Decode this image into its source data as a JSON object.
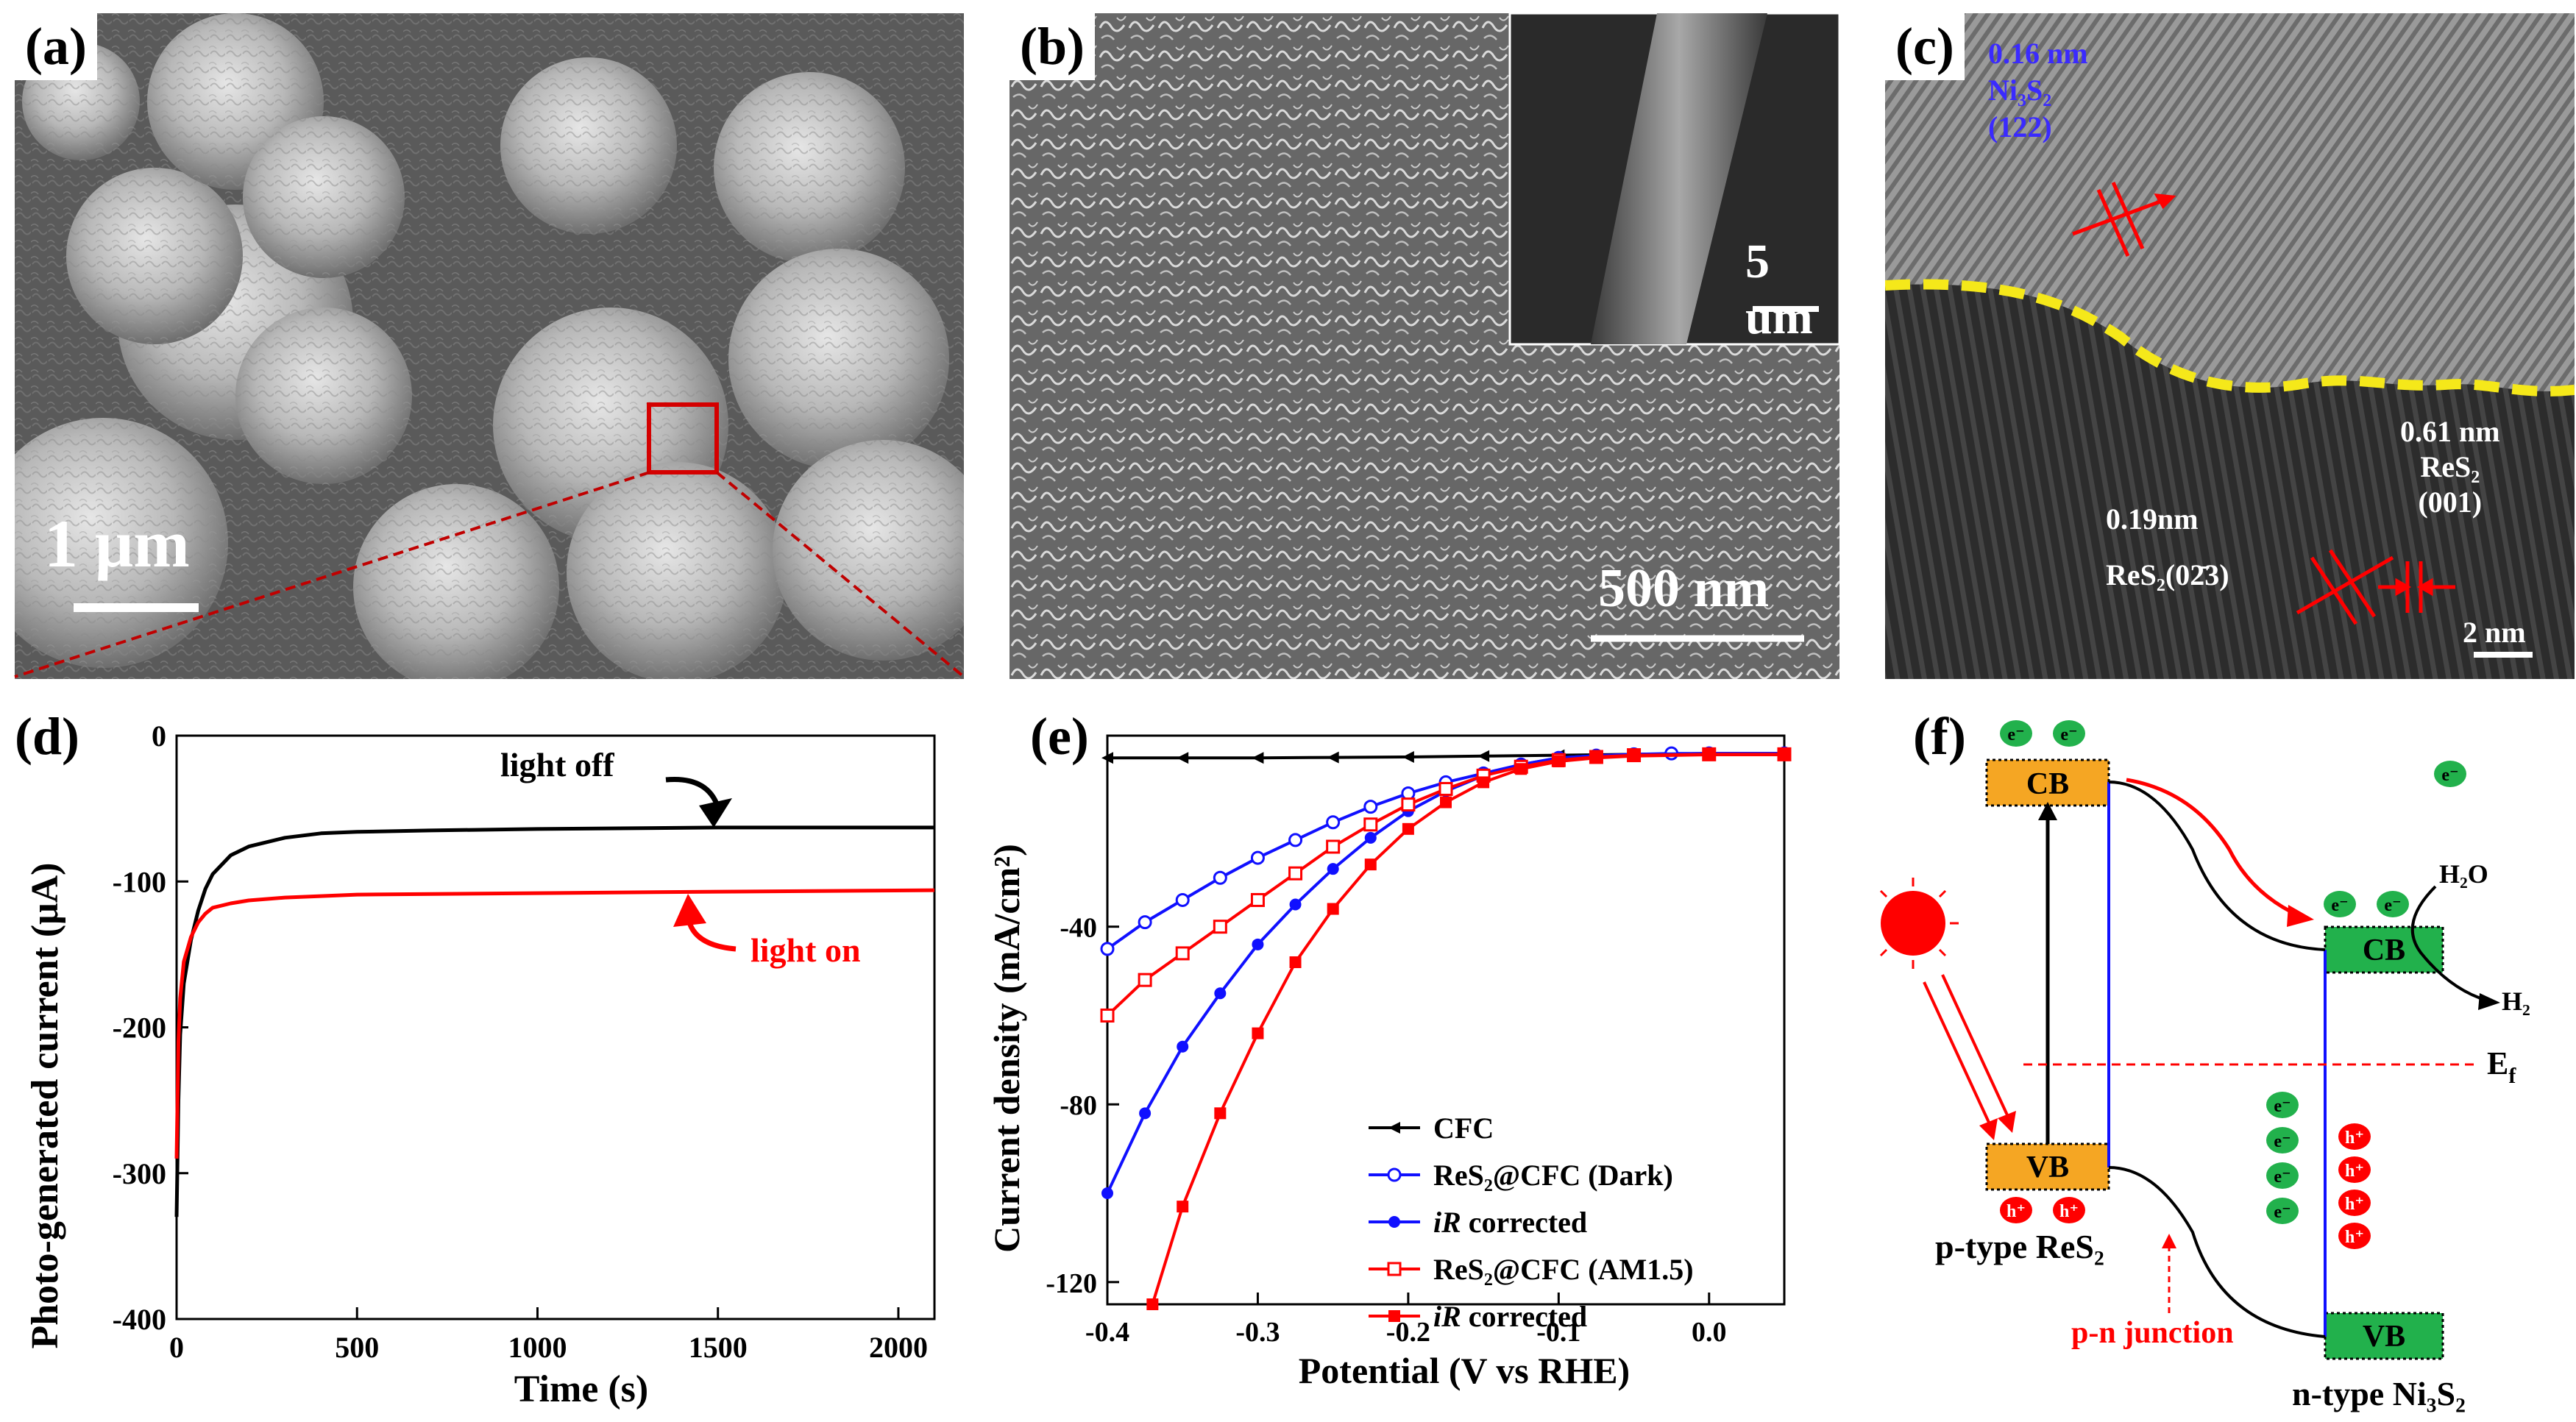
{
  "panels": {
    "a": {
      "label": "(a)",
      "scale": "1 μm"
    },
    "b": {
      "label": "(b)",
      "scale": "500 nm",
      "inset_scale": "5 um"
    },
    "c": {
      "label": "(c)",
      "ni3s2": {
        "d": "0.16 nm",
        "phase": "Ni₃S₂",
        "plane": "(122)"
      },
      "res2_001": {
        "d": "0.61 nm",
        "phase": "ReS₂",
        "plane": "(001)"
      },
      "res2_023": {
        "d": "0.19nm",
        "phase_plane": "ReS₂(02̄3)"
      },
      "scale": "2 nm"
    },
    "d": {
      "label": "(d)",
      "annotation_off": "light off",
      "annotation_on": "light on"
    },
    "e": {
      "label": "(e)"
    },
    "f": {
      "label": "(f)",
      "cb": "CB",
      "vb": "VB",
      "electron": "e⁻",
      "hole": "h⁺",
      "h2o": "H₂O",
      "h2": "H₂",
      "ef": "E",
      "ef_sub": "f",
      "ptype": "p-type ReS₂",
      "ntype": "n-type Ni₃S₂",
      "junction": "p-n junction"
    }
  },
  "colors": {
    "red": "#ff0000",
    "blue": "#1010ff",
    "black": "#000000",
    "cb_orange": "#f5a623",
    "green": "#22b14c",
    "yellow_dash": "#f5e81a"
  },
  "chart_data": [
    {
      "type": "line",
      "panel": "d",
      "xlabel": "Time (s)",
      "ylabel": "Photo-generated current (μA)",
      "xlim": [
        0,
        2100
      ],
      "ylim": [
        -400,
        0
      ],
      "xticks": [
        0,
        500,
        1000,
        1500,
        2000
      ],
      "yticks": [
        0,
        -100,
        -200,
        -300,
        -400
      ],
      "legend": "none",
      "series": [
        {
          "name": "light off",
          "color": "#000000",
          "x": [
            0,
            5,
            10,
            20,
            40,
            60,
            80,
            100,
            150,
            200,
            300,
            400,
            500,
            700,
            1000,
            1500,
            2100
          ],
          "y": [
            -330,
            -250,
            -205,
            -170,
            -140,
            -120,
            -105,
            -95,
            -82,
            -76,
            -70,
            -67,
            -66,
            -65,
            -64,
            -63,
            -63
          ]
        },
        {
          "name": "light on",
          "color": "#ff0000",
          "x": [
            0,
            5,
            10,
            20,
            40,
            60,
            80,
            100,
            150,
            200,
            300,
            500,
            1000,
            1500,
            2100
          ],
          "y": [
            -290,
            -210,
            -180,
            -155,
            -138,
            -128,
            -122,
            -118,
            -115,
            -113,
            -111,
            -109,
            -108,
            -107,
            -106
          ]
        }
      ]
    },
    {
      "type": "line",
      "panel": "e",
      "xlabel": "Potential (V vs RHE)",
      "ylabel": "Current density (mA/cm²)",
      "xlim": [
        -0.4,
        0.05
      ],
      "ylim": [
        -125,
        3
      ],
      "xticks": [
        -0.4,
        -0.3,
        -0.2,
        -0.1,
        0.0
      ],
      "xtick_labels": [
        "-0.4",
        "-0.3",
        "-0.2",
        "-0.1",
        "0.0"
      ],
      "yticks": [
        -40,
        -80,
        -120
      ],
      "legend": "center-right",
      "series": [
        {
          "name": "CFC",
          "color": "#000000",
          "marker": "triangle-left",
          "x": [
            -0.4,
            -0.35,
            -0.3,
            -0.25,
            -0.2,
            -0.15,
            -0.1,
            -0.05,
            0.0,
            0.05
          ],
          "y": [
            -2,
            -2,
            -2,
            -1.9,
            -1.8,
            -1.6,
            -1.4,
            -1.2,
            -1.0,
            -1.0
          ]
        },
        {
          "name": "ReS₂@CFC (Dark)",
          "color": "#1010ff",
          "marker": "circle-open",
          "x": [
            -0.4,
            -0.375,
            -0.35,
            -0.325,
            -0.3,
            -0.275,
            -0.25,
            -0.225,
            -0.2,
            -0.175,
            -0.15,
            -0.125,
            -0.1,
            -0.075,
            -0.05,
            -0.025,
            0.0,
            0.05
          ],
          "y": [
            -45,
            -39,
            -34,
            -29,
            -24.5,
            -20.5,
            -16.5,
            -13,
            -10,
            -7.5,
            -5.5,
            -3.5,
            -2,
            -1.5,
            -1.2,
            -1.0,
            -1.0,
            -1.0
          ]
        },
        {
          "name": "iR corrected",
          "color": "#1010ff",
          "marker": "circle-filled",
          "x": [
            -0.4,
            -0.375,
            -0.35,
            -0.325,
            -0.3,
            -0.275,
            -0.25,
            -0.225,
            -0.2,
            -0.175,
            -0.15,
            -0.125,
            -0.1,
            -0.075,
            -0.05,
            0.0,
            0.05
          ],
          "y": [
            -100,
            -82,
            -67,
            -55,
            -44,
            -35,
            -27,
            -20,
            -14,
            -9.5,
            -6,
            -3.5,
            -2,
            -1.5,
            -1.2,
            -1.0,
            -1.0
          ]
        },
        {
          "name": "ReS₂@CFC (AM1.5)",
          "color": "#ff0000",
          "marker": "square-open",
          "x": [
            -0.4,
            -0.375,
            -0.35,
            -0.325,
            -0.3,
            -0.275,
            -0.25,
            -0.225,
            -0.2,
            -0.175,
            -0.15,
            -0.125,
            -0.1,
            -0.075,
            -0.05,
            0.0,
            0.05
          ],
          "y": [
            -60,
            -52,
            -46,
            -40,
            -34,
            -28,
            -22,
            -17,
            -12.5,
            -9,
            -6,
            -4,
            -2.5,
            -1.8,
            -1.4,
            -1.2,
            -1.2
          ]
        },
        {
          "name": "iR corrected",
          "color": "#ff0000",
          "marker": "square-filled",
          "x": [
            -0.37,
            -0.35,
            -0.325,
            -0.3,
            -0.275,
            -0.25,
            -0.225,
            -0.2,
            -0.175,
            -0.15,
            -0.125,
            -0.1,
            -0.075,
            -0.05,
            0.0,
            0.05
          ],
          "y": [
            -125,
            -103,
            -82,
            -64,
            -48,
            -36,
            -26,
            -18,
            -12,
            -7.5,
            -4.5,
            -2.8,
            -2,
            -1.6,
            -1.3,
            -1.3
          ]
        }
      ]
    }
  ]
}
